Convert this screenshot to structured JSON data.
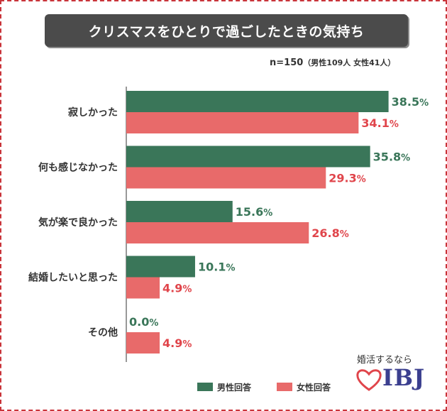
{
  "title": "クリスマスをひとりで過ごしたときの気持ち",
  "sample": {
    "main": "n=150",
    "detail": "（男性109人 女性41人）"
  },
  "legend": {
    "male": "男性回答",
    "female": "女性回答"
  },
  "brand": {
    "tagline": "婚活するなら",
    "logo": "IBJ"
  },
  "colors": {
    "male": "#3a7659",
    "female": "#e86a6a",
    "male_label": "#3a7659",
    "female_label": "#e0454b"
  },
  "chart_data": {
    "type": "bar",
    "orientation": "horizontal",
    "unit": "%",
    "categories": [
      "寂しかった",
      "何も感じなかった",
      "気が楽で良かった",
      "結婚したいと思った",
      "その他"
    ],
    "series": [
      {
        "name": "男性回答",
        "values": [
          38.5,
          35.8,
          15.6,
          10.1,
          0.0
        ]
      },
      {
        "name": "女性回答",
        "values": [
          34.1,
          29.3,
          26.8,
          4.9,
          4.9
        ]
      }
    ],
    "data_labels": [
      [
        "38.5%",
        "35.8%",
        "15.6%",
        "10.1%",
        "0.0%"
      ],
      [
        "34.1%",
        "29.3%",
        "26.8%",
        "4.9%",
        "4.9%"
      ]
    ],
    "xlim": [
      0,
      42
    ],
    "grid": false,
    "legend_position": "bottom"
  }
}
